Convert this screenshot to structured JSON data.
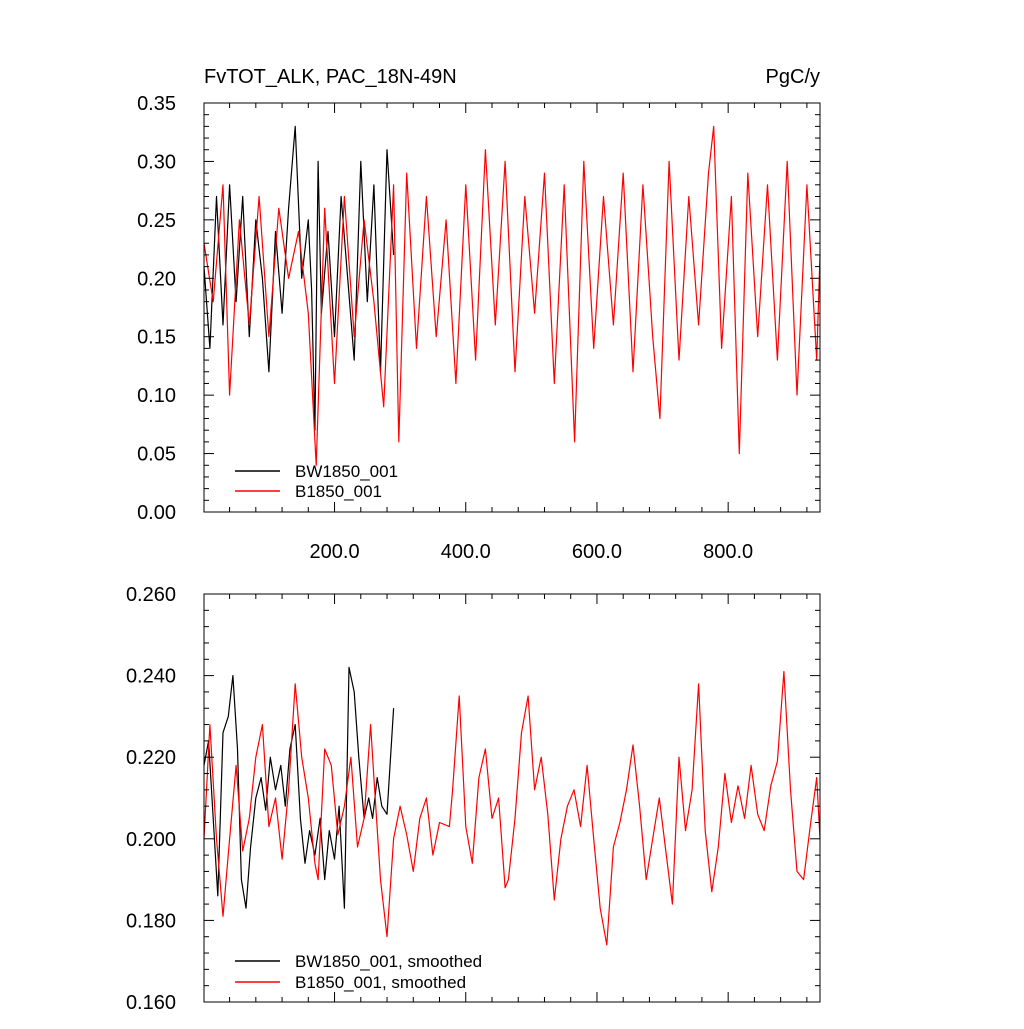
{
  "colors": {
    "series_a": "#000000",
    "series_b": "#ff0000",
    "axis": "#000000",
    "background": "#ffffff"
  },
  "chart_data": [
    {
      "type": "line",
      "title": "FvTOT_ALK, PAC_18N-49N",
      "units": "PgC/y",
      "xlim": [
        1,
        940
      ],
      "ylim": [
        0.0,
        0.35
      ],
      "x_ticks": [
        200,
        400,
        600,
        800
      ],
      "x_tick_labels": [
        "200.0",
        "400.0",
        "600.0",
        "800.0"
      ],
      "y_ticks": [
        0.0,
        0.05,
        0.1,
        0.15,
        0.2,
        0.25,
        0.3,
        0.35
      ],
      "y_tick_labels": [
        "0.00",
        "0.05",
        "0.10",
        "0.15",
        "0.20",
        "0.25",
        "0.30",
        "0.35"
      ],
      "grid": false,
      "legend": "bottom-left",
      "series": [
        {
          "name": "BW1850_001",
          "color": "#000000",
          "x": [
            1,
            10,
            20,
            30,
            40,
            50,
            60,
            70,
            80,
            90,
            100,
            110,
            120,
            130,
            140,
            150,
            160,
            165,
            170,
            175,
            180,
            190,
            200,
            210,
            220,
            230,
            240,
            250,
            260,
            270,
            280,
            290
          ],
          "y": [
            0.21,
            0.14,
            0.27,
            0.16,
            0.28,
            0.18,
            0.27,
            0.15,
            0.25,
            0.2,
            0.12,
            0.24,
            0.17,
            0.26,
            0.33,
            0.2,
            0.25,
            0.19,
            0.07,
            0.3,
            0.17,
            0.24,
            0.15,
            0.27,
            0.2,
            0.13,
            0.3,
            0.18,
            0.28,
            0.12,
            0.31,
            0.22
          ]
        },
        {
          "name": "B1850_001",
          "color": "#ff0000",
          "x": [
            1,
            15,
            30,
            40,
            55,
            70,
            85,
            100,
            115,
            130,
            145,
            160,
            172,
            185,
            200,
            215,
            230,
            245,
            260,
            275,
            290,
            298,
            310,
            325,
            340,
            355,
            370,
            385,
            400,
            415,
            430,
            445,
            460,
            475,
            490,
            505,
            520,
            535,
            550,
            566,
            580,
            595,
            610,
            625,
            640,
            655,
            670,
            685,
            696,
            710,
            725,
            740,
            755,
            770,
            778,
            790,
            805,
            817,
            830,
            845,
            860,
            875,
            890,
            905,
            920,
            935,
            940
          ],
          "y": [
            0.23,
            0.18,
            0.28,
            0.1,
            0.25,
            0.16,
            0.27,
            0.15,
            0.26,
            0.2,
            0.24,
            0.17,
            0.04,
            0.26,
            0.11,
            0.27,
            0.15,
            0.25,
            0.18,
            0.09,
            0.28,
            0.06,
            0.29,
            0.14,
            0.27,
            0.15,
            0.25,
            0.11,
            0.28,
            0.13,
            0.31,
            0.16,
            0.3,
            0.12,
            0.27,
            0.17,
            0.29,
            0.11,
            0.28,
            0.06,
            0.3,
            0.14,
            0.27,
            0.16,
            0.29,
            0.12,
            0.28,
            0.15,
            0.08,
            0.3,
            0.13,
            0.27,
            0.16,
            0.29,
            0.33,
            0.14,
            0.27,
            0.05,
            0.29,
            0.15,
            0.28,
            0.13,
            0.3,
            0.1,
            0.28,
            0.13,
            0.22
          ]
        }
      ]
    },
    {
      "type": "line",
      "title": "",
      "xlim": [
        1,
        940
      ],
      "ylim": [
        0.16,
        0.26
      ],
      "y_ticks": [
        0.16,
        0.18,
        0.2,
        0.22,
        0.24,
        0.26
      ],
      "y_tick_labels": [
        "0.160",
        "0.180",
        "0.200",
        "0.220",
        "0.240",
        "0.260"
      ],
      "grid": false,
      "legend": "bottom-left",
      "series": [
        {
          "name": "BW1850_001, smoothed",
          "color": "#000000",
          "x": [
            1,
            8,
            15,
            22,
            30,
            38,
            45,
            52,
            58,
            65,
            72,
            80,
            88,
            95,
            102,
            110,
            118,
            125,
            132,
            140,
            148,
            155,
            162,
            170,
            178,
            185,
            192,
            200,
            207,
            215,
            222,
            230,
            237,
            245,
            252,
            258,
            265,
            272,
            280,
            290
          ],
          "y": [
            0.218,
            0.224,
            0.205,
            0.186,
            0.226,
            0.23,
            0.24,
            0.222,
            0.19,
            0.183,
            0.198,
            0.21,
            0.215,
            0.207,
            0.22,
            0.212,
            0.218,
            0.208,
            0.222,
            0.228,
            0.205,
            0.194,
            0.202,
            0.196,
            0.205,
            0.19,
            0.202,
            0.195,
            0.208,
            0.183,
            0.242,
            0.236,
            0.22,
            0.205,
            0.21,
            0.205,
            0.215,
            0.208,
            0.206,
            0.232
          ]
        },
        {
          "name": "B1850_001, smoothed",
          "color": "#ff0000",
          "x": [
            1,
            10,
            20,
            30,
            40,
            50,
            60,
            70,
            80,
            90,
            100,
            110,
            120,
            130,
            140,
            150,
            160,
            170,
            175,
            185,
            195,
            205,
            215,
            225,
            235,
            245,
            255,
            260,
            270,
            280,
            290,
            300,
            310,
            320,
            330,
            340,
            350,
            360,
            375,
            380,
            390,
            400,
            410,
            420,
            430,
            440,
            450,
            460,
            465,
            475,
            485,
            495,
            505,
            515,
            525,
            535,
            545,
            555,
            565,
            575,
            585,
            595,
            605,
            615,
            625,
            635,
            645,
            655,
            665,
            675,
            685,
            695,
            705,
            715,
            725,
            735,
            745,
            755,
            765,
            775,
            785,
            795,
            805,
            815,
            825,
            835,
            845,
            855,
            865,
            875,
            885,
            895,
            905,
            915,
            925,
            935,
            940
          ],
          "y": [
            0.2,
            0.228,
            0.2,
            0.181,
            0.2,
            0.218,
            0.197,
            0.205,
            0.22,
            0.228,
            0.203,
            0.21,
            0.195,
            0.212,
            0.238,
            0.22,
            0.21,
            0.194,
            0.19,
            0.222,
            0.218,
            0.201,
            0.208,
            0.22,
            0.198,
            0.205,
            0.228,
            0.215,
            0.19,
            0.176,
            0.2,
            0.208,
            0.201,
            0.192,
            0.205,
            0.21,
            0.196,
            0.204,
            0.203,
            0.212,
            0.235,
            0.203,
            0.194,
            0.215,
            0.222,
            0.205,
            0.21,
            0.188,
            0.19,
            0.205,
            0.226,
            0.235,
            0.212,
            0.22,
            0.206,
            0.185,
            0.2,
            0.208,
            0.212,
            0.203,
            0.218,
            0.2,
            0.183,
            0.174,
            0.198,
            0.204,
            0.212,
            0.223,
            0.208,
            0.19,
            0.2,
            0.21,
            0.197,
            0.184,
            0.22,
            0.202,
            0.212,
            0.238,
            0.202,
            0.187,
            0.198,
            0.216,
            0.204,
            0.213,
            0.205,
            0.218,
            0.206,
            0.202,
            0.213,
            0.219,
            0.241,
            0.212,
            0.192,
            0.19,
            0.203,
            0.215,
            0.2
          ]
        }
      ]
    }
  ]
}
